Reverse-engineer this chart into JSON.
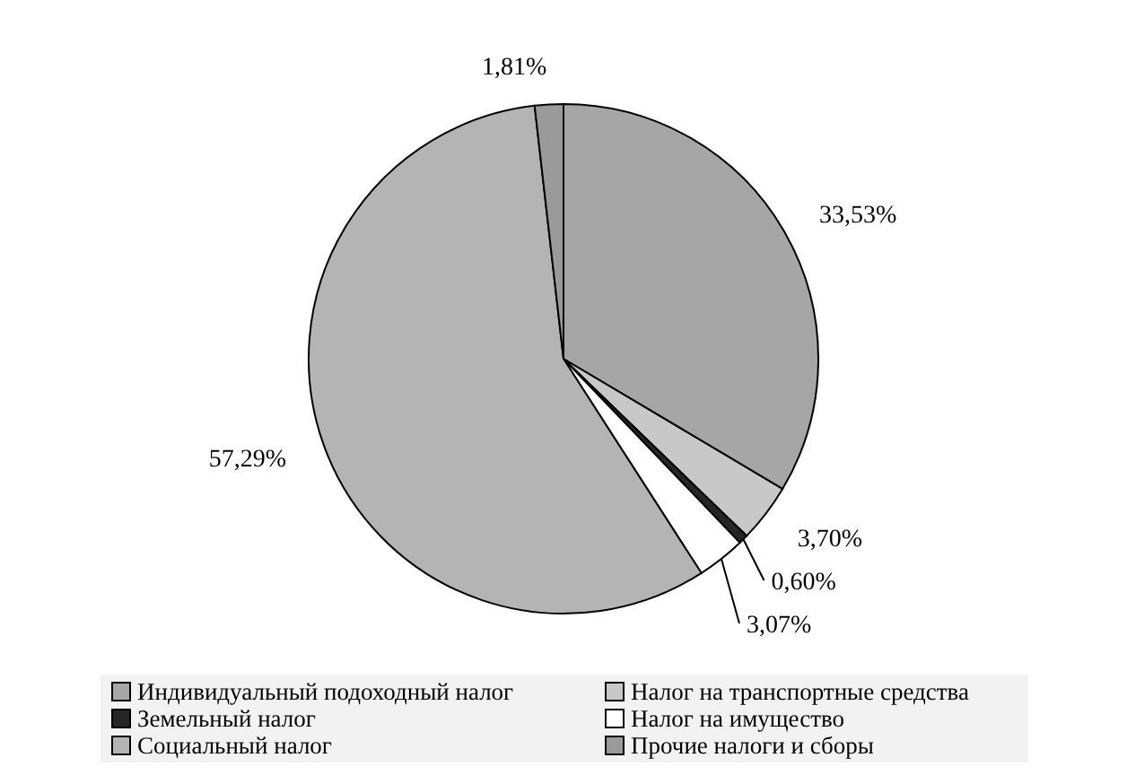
{
  "chart_data": {
    "type": "pie",
    "categories": [
      "Индивидуальный подоходный налог",
      "Налог на транспортные средства",
      "Земельный налог",
      "Налог на имущество",
      "Социальный налог",
      "Прочие налоги и сборы"
    ],
    "values": [
      33.53,
      3.7,
      0.6,
      3.07,
      57.29,
      1.81
    ],
    "value_labels": [
      "33,53%",
      "3,70%",
      "0,60%",
      "3,07%",
      "57,29%",
      "1,81%"
    ],
    "colors": [
      "#a6a6a6",
      "#c8c8c8",
      "#262626",
      "#ffffff",
      "#b4b4b4",
      "#9a9a9a"
    ],
    "legend": "bottom"
  }
}
